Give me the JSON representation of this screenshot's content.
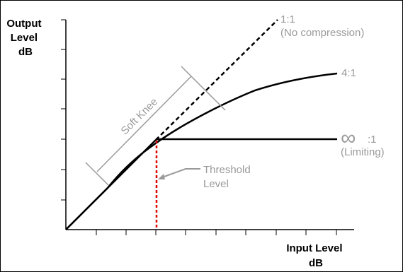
{
  "y_axis_label": [
    "Output",
    "Level",
    "dB"
  ],
  "x_axis_label": [
    "Input Level",
    "dB"
  ],
  "curves": {
    "one_to_one": {
      "line1": "1:1",
      "line2": "(No compression)"
    },
    "four_to_one": {
      "label": "4:1"
    },
    "infinity": {
      "symbol": "∞",
      "ratio": ":1",
      "line2": "(Limiting)"
    }
  },
  "soft_knee_label": "Soft Knee",
  "threshold_label": [
    "Threshold",
    "Level"
  ],
  "colors": {
    "line": "#000000",
    "annotation": "#9a9a9a",
    "threshold_marker": "#e00000"
  }
}
